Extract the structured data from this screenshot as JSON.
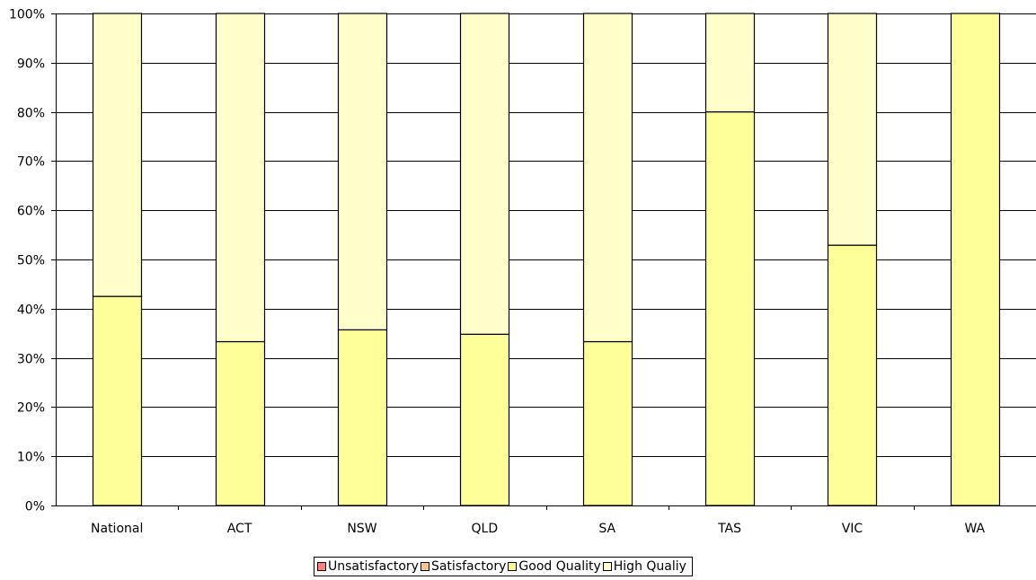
{
  "chart_data": {
    "type": "bar",
    "stacked": true,
    "categories": [
      "National",
      "ACT",
      "NSW",
      "QLD",
      "SA",
      "TAS",
      "VIC",
      "WA"
    ],
    "series": [
      {
        "name": "Unsatisfactory",
        "color": "#FF7F7F",
        "values": [
          0,
          0,
          0,
          0,
          0,
          0,
          0,
          0
        ]
      },
      {
        "name": "Satisfactory",
        "color": "#FFC58A",
        "values": [
          0,
          0,
          0,
          0,
          0,
          0,
          0,
          0
        ]
      },
      {
        "name": "Good Quality",
        "color": "#FFFF99",
        "values": [
          42.5,
          33.3,
          35.7,
          34.8,
          33.3,
          80,
          52.9,
          100
        ]
      },
      {
        "name": "High Qualiy",
        "color": "#FFFFCC",
        "values": [
          57.5,
          66.7,
          64.3,
          65.2,
          66.7,
          20,
          47.1,
          0
        ]
      }
    ],
    "ylim": [
      0,
      100
    ],
    "yticks": [
      "0%",
      "10%",
      "20%",
      "30%",
      "40%",
      "50%",
      "60%",
      "70%",
      "80%",
      "90%",
      "100%"
    ],
    "grid": true,
    "legend_position": "bottom",
    "title": "",
    "xlabel": "",
    "ylabel": ""
  }
}
